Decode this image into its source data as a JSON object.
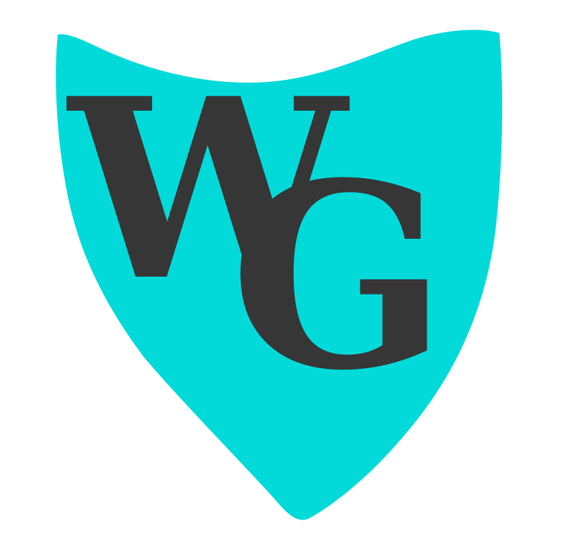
{
  "logo": {
    "shield_color": "#02DADA",
    "letter_color": "#363636",
    "background_color": "#FFFFFF",
    "monogram": {
      "first_letter": "W",
      "second_letter": "G"
    }
  }
}
